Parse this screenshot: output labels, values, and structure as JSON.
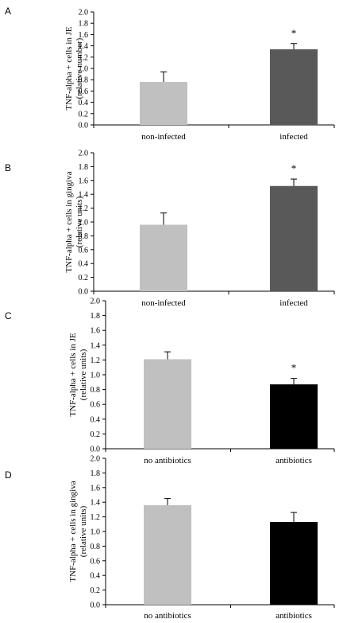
{
  "chart_data": [
    {
      "panel": "A",
      "type": "bar",
      "categories": [
        "non-infected",
        "infected"
      ],
      "values": [
        0.76,
        1.34
      ],
      "errors": [
        0.18,
        0.1
      ],
      "significance": [
        "",
        "*"
      ],
      "ylabel_lines": [
        "TNF-alpha + cells in JE",
        "(relative number)"
      ],
      "yticks": [
        "0.0",
        "0.2",
        "0.4",
        "0.6",
        "0.8",
        "1.0",
        "1.2",
        "1.4",
        "1.6",
        "1.8",
        "2.0"
      ],
      "ylim": [
        0,
        2.0
      ],
      "bar_colors": [
        "#c0c0c0",
        "#595959"
      ]
    },
    {
      "panel": "B",
      "type": "bar",
      "categories": [
        "non-infected",
        "infected"
      ],
      "values": [
        0.96,
        1.52
      ],
      "errors": [
        0.17,
        0.1
      ],
      "significance": [
        "",
        "*"
      ],
      "ylabel_lines": [
        "TNF-alpha + cells in gingiva",
        "(relative units)"
      ],
      "yticks": [
        "0.0",
        "0.2",
        "0.4",
        "0.6",
        "0.8",
        "1.0",
        "1.2",
        "1.4",
        "1.6",
        "1.8",
        "2.0"
      ],
      "ylim": [
        0,
        2.0
      ],
      "bar_colors": [
        "#c0c0c0",
        "#595959"
      ]
    },
    {
      "panel": "C",
      "type": "bar",
      "categories": [
        "no antibiotics",
        "antibiotics"
      ],
      "values": [
        1.21,
        0.87
      ],
      "errors": [
        0.1,
        0.08
      ],
      "significance": [
        "",
        "*"
      ],
      "ylabel_lines": [
        "TNF-alpha + cells in JE",
        "(relative units)"
      ],
      "yticks": [
        "0.0",
        "0.2",
        "0.4",
        "0.6",
        "0.8",
        "1.0",
        "1.2",
        "1.4",
        "1.6",
        "1.8",
        "2.0"
      ],
      "ylim": [
        0,
        2.0
      ],
      "bar_colors": [
        "#c0c0c0",
        "#000000"
      ]
    },
    {
      "panel": "D",
      "type": "bar",
      "categories": [
        "no antibiotics",
        "antibiotics"
      ],
      "values": [
        1.36,
        1.13
      ],
      "errors": [
        0.09,
        0.13
      ],
      "significance": [
        "",
        ""
      ],
      "ylabel_lines": [
        "TNF-alpha + cells in gingiva",
        "(relative units)"
      ],
      "yticks": [
        "0.0",
        "0.2",
        "0.4",
        "0.6",
        "0.8",
        "1.0",
        "1.2",
        "1.4",
        "1.6",
        "1.8",
        "2.0"
      ],
      "ylim": [
        0,
        2.0
      ],
      "bar_colors": [
        "#c0c0c0",
        "#000000"
      ]
    }
  ]
}
